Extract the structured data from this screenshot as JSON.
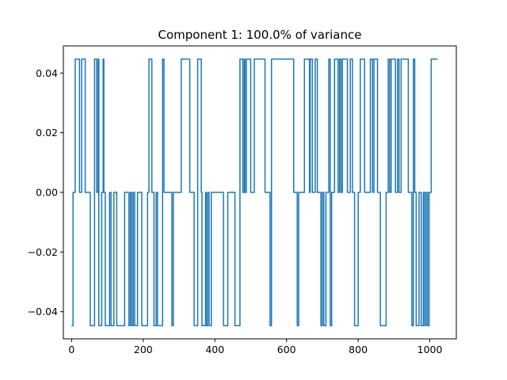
{
  "chart_data": {
    "type": "line",
    "title": "Component 1: 100.0% of variance",
    "xlabel": "",
    "ylabel": "",
    "xlim": [
      -23,
      1074
    ],
    "ylim": [
      -0.0491,
      0.0491
    ],
    "xticks": [
      0,
      200,
      400,
      600,
      800,
      1000
    ],
    "xtick_labels": [
      "0",
      "200",
      "400",
      "600",
      "800",
      "1000"
    ],
    "yticks": [
      -0.04,
      -0.02,
      0.0,
      0.02,
      0.04
    ],
    "ytick_labels": [
      "−0.04",
      "−0.02",
      "0.00",
      "0.02",
      "0.04"
    ],
    "grid": false,
    "line_color": "#1f77b4",
    "step_levels": [
      -0.0447,
      0.0,
      0.0447
    ],
    "series": [
      {
        "steps": [
          [
            0,
            -1
          ],
          [
            4,
            0
          ],
          [
            10,
            1
          ],
          [
            22,
            0
          ],
          [
            28,
            1
          ],
          [
            38,
            0
          ],
          [
            52,
            -1
          ],
          [
            64,
            1
          ],
          [
            70,
            0
          ],
          [
            74,
            1
          ],
          [
            76,
            -1
          ],
          [
            84,
            0
          ],
          [
            88,
            1
          ],
          [
            90,
            0
          ],
          [
            94,
            -1
          ],
          [
            106,
            0
          ],
          [
            110,
            -1
          ],
          [
            118,
            0
          ],
          [
            126,
            -1
          ],
          [
            148,
            0
          ],
          [
            160,
            -1
          ],
          [
            164,
            0
          ],
          [
            168,
            -1
          ],
          [
            172,
            0
          ],
          [
            176,
            -1
          ],
          [
            184,
            0
          ],
          [
            196,
            -1
          ],
          [
            212,
            0
          ],
          [
            216,
            1
          ],
          [
            224,
            0
          ],
          [
            230,
            -1
          ],
          [
            236,
            0
          ],
          [
            240,
            -1
          ],
          [
            254,
            1
          ],
          [
            258,
            0
          ],
          [
            280,
            -1
          ],
          [
            284,
            0
          ],
          [
            306,
            1
          ],
          [
            330,
            0
          ],
          [
            342,
            -1
          ],
          [
            352,
            1
          ],
          [
            362,
            0
          ],
          [
            364,
            -1
          ],
          [
            374,
            0
          ],
          [
            376,
            -1
          ],
          [
            380,
            0
          ],
          [
            384,
            -1
          ],
          [
            390,
            0
          ],
          [
            424,
            -1
          ],
          [
            436,
            0
          ],
          [
            456,
            -1
          ],
          [
            470,
            1
          ],
          [
            478,
            0
          ],
          [
            482,
            1
          ],
          [
            484,
            0
          ],
          [
            488,
            1
          ],
          [
            500,
            0
          ],
          [
            510,
            1
          ],
          [
            540,
            0
          ],
          [
            554,
            -1
          ],
          [
            558,
            1
          ],
          [
            620,
            0
          ],
          [
            630,
            -1
          ],
          [
            634,
            0
          ],
          [
            650,
            1
          ],
          [
            664,
            0
          ],
          [
            666,
            1
          ],
          [
            672,
            0
          ],
          [
            680,
            1
          ],
          [
            686,
            0
          ],
          [
            696,
            -1
          ],
          [
            700,
            0
          ],
          [
            704,
            -1
          ],
          [
            710,
            0
          ],
          [
            718,
            1
          ],
          [
            722,
            -1
          ],
          [
            726,
            0
          ],
          [
            734,
            1
          ],
          [
            744,
            0
          ],
          [
            748,
            1
          ],
          [
            752,
            0
          ],
          [
            756,
            1
          ],
          [
            770,
            0
          ],
          [
            778,
            1
          ],
          [
            784,
            0
          ],
          [
            790,
            -1
          ],
          [
            800,
            0
          ],
          [
            806,
            1
          ],
          [
            818,
            0
          ],
          [
            834,
            1
          ],
          [
            840,
            0
          ],
          [
            844,
            1
          ],
          [
            854,
            0
          ],
          [
            862,
            -1
          ],
          [
            878,
            0
          ],
          [
            884,
            1
          ],
          [
            888,
            0
          ],
          [
            892,
            1
          ],
          [
            904,
            0
          ],
          [
            910,
            1
          ],
          [
            914,
            0
          ],
          [
            920,
            1
          ],
          [
            940,
            0
          ],
          [
            950,
            -1
          ],
          [
            954,
            1
          ],
          [
            958,
            0
          ],
          [
            962,
            -1
          ],
          [
            970,
            0
          ],
          [
            976,
            -1
          ],
          [
            982,
            0
          ],
          [
            986,
            -1
          ],
          [
            990,
            0
          ],
          [
            994,
            -1
          ],
          [
            998,
            0
          ],
          [
            1004,
            1
          ],
          [
            1022,
            1
          ]
        ]
      }
    ]
  }
}
